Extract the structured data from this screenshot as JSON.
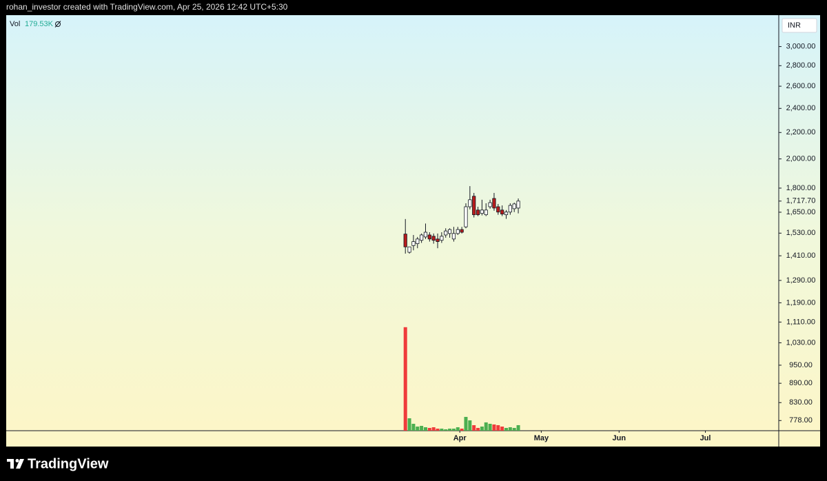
{
  "header": {
    "text": "rohan_investor created with TradingView.com, Apr 25, 2026 12:42 UTC+5:30"
  },
  "footer": {
    "brand": "TradingView"
  },
  "chart_data": {
    "type": "candlestick",
    "currency": "INR",
    "log_scale": true,
    "up_color": "#ffffff",
    "down_color": "#b71c1c",
    "open": [
      1525,
      1428,
      1463,
      1473,
      1491,
      1509,
      1520,
      1513,
      1498,
      1491,
      1520,
      1528,
      1498,
      1528,
      1550,
      1565,
      1683,
      1748,
      1663,
      1643,
      1635,
      1683,
      1734,
      1683,
      1663,
      1635,
      1651,
      1671,
      1675
    ],
    "high": [
      1610,
      1456,
      1520,
      1509,
      1528,
      1584,
      1535,
      1528,
      1528,
      1535,
      1557,
      1557,
      1565,
      1565,
      1565,
      1704,
      1813,
      1769,
      1683,
      1726,
      1704,
      1726,
      1769,
      1700,
      1691,
      1663,
      1704,
      1708,
      1734
    ],
    "low": [
      1421,
      1421,
      1438,
      1449,
      1477,
      1498,
      1484,
      1473,
      1449,
      1477,
      1505,
      1505,
      1484,
      1520,
      1528,
      1557,
      1667,
      1619,
      1627,
      1631,
      1627,
      1671,
      1659,
      1635,
      1627,
      1611,
      1635,
      1651,
      1643
    ],
    "close": [
      1456,
      1456,
      1484,
      1498,
      1520,
      1535,
      1498,
      1491,
      1484,
      1513,
      1542,
      1550,
      1528,
      1550,
      1535,
      1683,
      1726,
      1635,
      1635,
      1663,
      1663,
      1708,
      1675,
      1651,
      1639,
      1651,
      1691,
      1700,
      1717.7
    ],
    "last_price": {
      "value": 1717.7,
      "label": "1,717.70"
    },
    "xlim": [
      -99,
      92.6
    ],
    "xticks": [
      {
        "value": 13.5,
        "label": "Apr"
      },
      {
        "value": 33.7,
        "label": "May"
      },
      {
        "value": 53,
        "label": "Jun"
      },
      {
        "value": 74.4,
        "label": "Jul"
      }
    ],
    "ylim": [
      750,
      3360
    ],
    "yticks": [
      {
        "value": 3000,
        "label": "3,000.00"
      },
      {
        "value": 2800,
        "label": "2,800.00"
      },
      {
        "value": 2600,
        "label": "2,600.00"
      },
      {
        "value": 2400,
        "label": "2,400.00"
      },
      {
        "value": 2200,
        "label": "2,200.00"
      },
      {
        "value": 2000,
        "label": "2,000.00"
      },
      {
        "value": 1800,
        "label": "1,800.00"
      },
      {
        "value": 1650,
        "label": "1,650.00"
      },
      {
        "value": 1530,
        "label": "1,530.00"
      },
      {
        "value": 1410,
        "label": "1,410.00"
      },
      {
        "value": 1290,
        "label": "1,290.00"
      },
      {
        "value": 1190,
        "label": "1,190.00"
      },
      {
        "value": 1110,
        "label": "1,110.00"
      },
      {
        "value": 1030,
        "label": "1,030.00"
      },
      {
        "value": 950,
        "label": "950.00"
      },
      {
        "value": 890,
        "label": "890.00"
      },
      {
        "value": 830,
        "label": "830.00"
      },
      {
        "value": 778,
        "label": "778.00"
      }
    ],
    "volume": {
      "name": "Vol",
      "up_color": "#4caf50",
      "down_color": "#ef3b3b",
      "ylim": [
        0,
        3400
      ],
      "values": [
        3360,
        403,
        224,
        134,
        157,
        112,
        90,
        112,
        67,
        67,
        45,
        67,
        67,
        112,
        67,
        448,
        336,
        179,
        90,
        134,
        269,
        224,
        202,
        179,
        134,
        90,
        112,
        90,
        179.53
      ],
      "last_value_label": "179.53K"
    }
  }
}
